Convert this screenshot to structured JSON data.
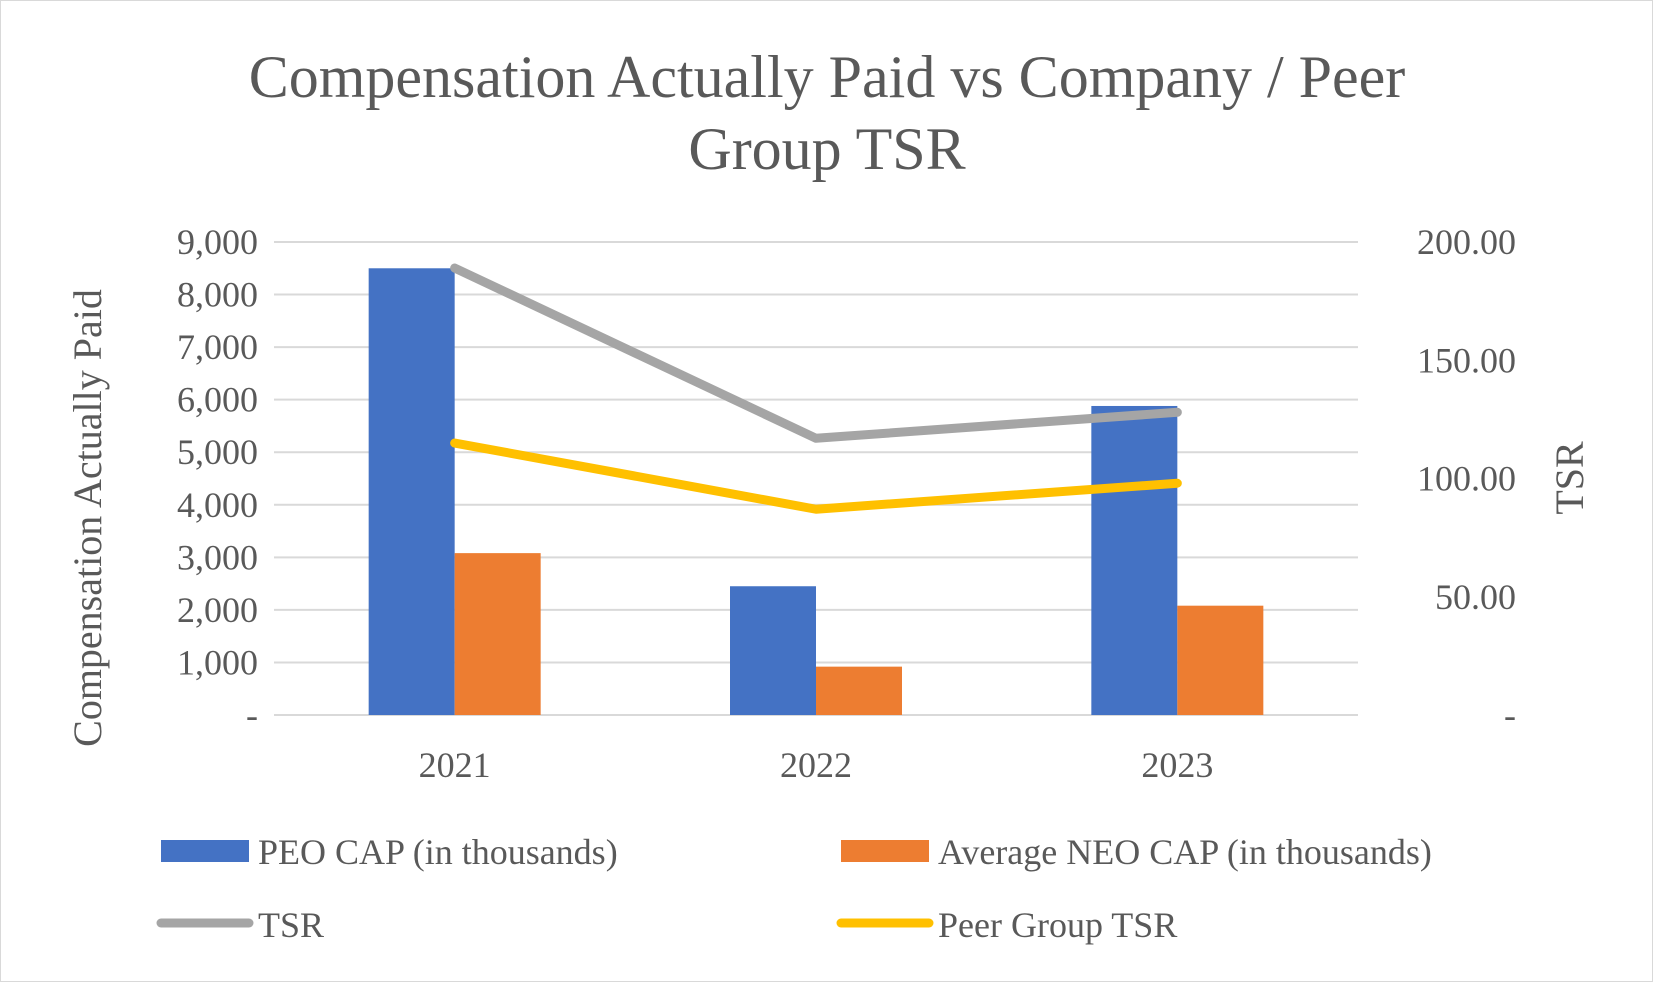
{
  "chart_data": {
    "type": "bar",
    "title": "Compensation Actually Paid vs Company / Peer Group TSR",
    "title_lines": [
      "Compensation Actually Paid vs Company / Peer",
      "Group TSR"
    ],
    "categories": [
      "2021",
      "2022",
      "2023"
    ],
    "ylabel": "Compensation Actually Paid",
    "y2label": "TSR",
    "ylim": [
      0,
      9000
    ],
    "y2lim": [
      0,
      200
    ],
    "y_ticks": [
      0,
      1000,
      2000,
      3000,
      4000,
      5000,
      6000,
      7000,
      8000,
      9000
    ],
    "y_tick_labels": [
      "-",
      "1,000",
      "2,000",
      "3,000",
      "4,000",
      "5,000",
      "6,000",
      "7,000",
      "8,000",
      "9,000"
    ],
    "y2_ticks": [
      0,
      50,
      100,
      150,
      200
    ],
    "y2_tick_labels": [
      "-",
      "50.00",
      "100.00",
      "150.00",
      "200.00"
    ],
    "grid": true,
    "legend_position": "bottom",
    "series": [
      {
        "name": "PEO CAP (in thousands)",
        "kind": "bar",
        "axis": "left",
        "color": "#4472c4",
        "values": [
          8500,
          2450,
          5880
        ]
      },
      {
        "name": "Average NEO CAP (in thousands)",
        "kind": "bar",
        "axis": "left",
        "color": "#ed7d31",
        "values": [
          3080,
          920,
          2080
        ]
      },
      {
        "name": "TSR",
        "kind": "line",
        "axis": "right",
        "color": "#a5a5a5",
        "values": [
          189,
          117,
          128
        ]
      },
      {
        "name": "Peer Group TSR",
        "kind": "line",
        "axis": "right",
        "color": "#ffc000",
        "values": [
          115,
          87,
          98
        ]
      }
    ]
  }
}
